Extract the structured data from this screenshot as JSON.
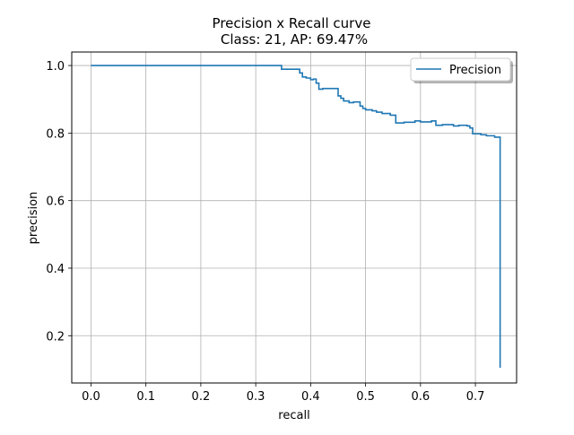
{
  "chart_data": {
    "type": "line",
    "title": "Precision x Recall curve",
    "subtitle": "Class: 21, AP: 69.47%",
    "xlabel": "recall",
    "ylabel": "precision",
    "xlim": [
      -0.035,
      0.775
    ],
    "ylim": [
      0.06,
      1.04
    ],
    "xticks": [
      0.0,
      0.1,
      0.2,
      0.3,
      0.4,
      0.5,
      0.6,
      0.7
    ],
    "xtick_labels": [
      "0.0",
      "0.1",
      "0.2",
      "0.3",
      "0.4",
      "0.5",
      "0.6",
      "0.7"
    ],
    "yticks": [
      0.2,
      0.4,
      0.6,
      0.8,
      1.0
    ],
    "ytick_labels": [
      "0.2",
      "0.4",
      "0.6",
      "0.8",
      "1.0"
    ],
    "grid": true,
    "legend_position": "top-right",
    "series": [
      {
        "name": "Precision",
        "color": "#1f77b4",
        "x": [
          0.0,
          0.347,
          0.347,
          0.38,
          0.38,
          0.385,
          0.385,
          0.392,
          0.392,
          0.4,
          0.4,
          0.405,
          0.405,
          0.41,
          0.41,
          0.415,
          0.415,
          0.422,
          0.422,
          0.45,
          0.45,
          0.455,
          0.455,
          0.46,
          0.46,
          0.47,
          0.47,
          0.478,
          0.478,
          0.49,
          0.49,
          0.495,
          0.495,
          0.5,
          0.5,
          0.512,
          0.512,
          0.52,
          0.52,
          0.53,
          0.53,
          0.545,
          0.545,
          0.555,
          0.555,
          0.57,
          0.57,
          0.59,
          0.59,
          0.6,
          0.6,
          0.62,
          0.62,
          0.628,
          0.628,
          0.64,
          0.64,
          0.66,
          0.66,
          0.67,
          0.67,
          0.685,
          0.685,
          0.69,
          0.69,
          0.695,
          0.695,
          0.71,
          0.71,
          0.72,
          0.72,
          0.735,
          0.735,
          0.745,
          0.745
        ],
        "y": [
          1.0,
          1.0,
          0.989,
          0.989,
          0.978,
          0.978,
          0.966,
          0.966,
          0.963,
          0.963,
          0.958,
          0.958,
          0.96,
          0.96,
          0.948,
          0.948,
          0.93,
          0.93,
          0.932,
          0.932,
          0.91,
          0.91,
          0.903,
          0.903,
          0.895,
          0.895,
          0.89,
          0.89,
          0.892,
          0.892,
          0.88,
          0.88,
          0.873,
          0.873,
          0.869,
          0.869,
          0.866,
          0.866,
          0.862,
          0.862,
          0.858,
          0.858,
          0.853,
          0.853,
          0.83,
          0.83,
          0.832,
          0.832,
          0.836,
          0.836,
          0.833,
          0.833,
          0.836,
          0.836,
          0.823,
          0.823,
          0.825,
          0.825,
          0.821,
          0.821,
          0.823,
          0.823,
          0.821,
          0.821,
          0.815,
          0.815,
          0.798,
          0.798,
          0.795,
          0.795,
          0.792,
          0.792,
          0.788,
          0.788,
          0.105
        ]
      }
    ]
  }
}
